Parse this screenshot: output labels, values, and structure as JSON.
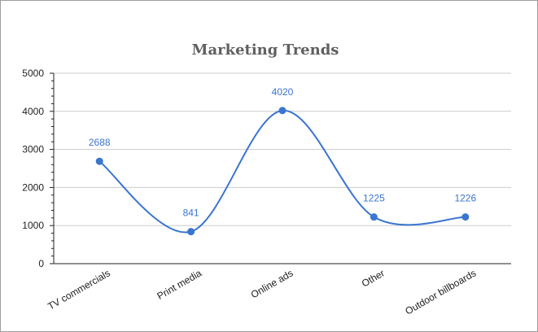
{
  "chart_data": {
    "type": "line",
    "title": "Marketing Trends",
    "xlabel": "",
    "ylabel": "",
    "categories": [
      "TV commercials",
      "Print media",
      "Online ads",
      "Other",
      "Outdoor billboards"
    ],
    "series": [
      {
        "values": [
          2688,
          841,
          4020,
          1225,
          1226
        ]
      }
    ],
    "data_labels": [
      "2688",
      "841",
      "4020",
      "1225",
      "1226"
    ],
    "y_ticks": [
      "0",
      "1000",
      "2000",
      "3000",
      "4000",
      "5000"
    ],
    "ylim": [
      0,
      5000
    ],
    "smooth": true,
    "grid": true,
    "legend": "none",
    "colors": {
      "line": "#3a75d0",
      "grid": "#cccccc",
      "axis": "#222222",
      "title": "#5f5f5f"
    }
  }
}
